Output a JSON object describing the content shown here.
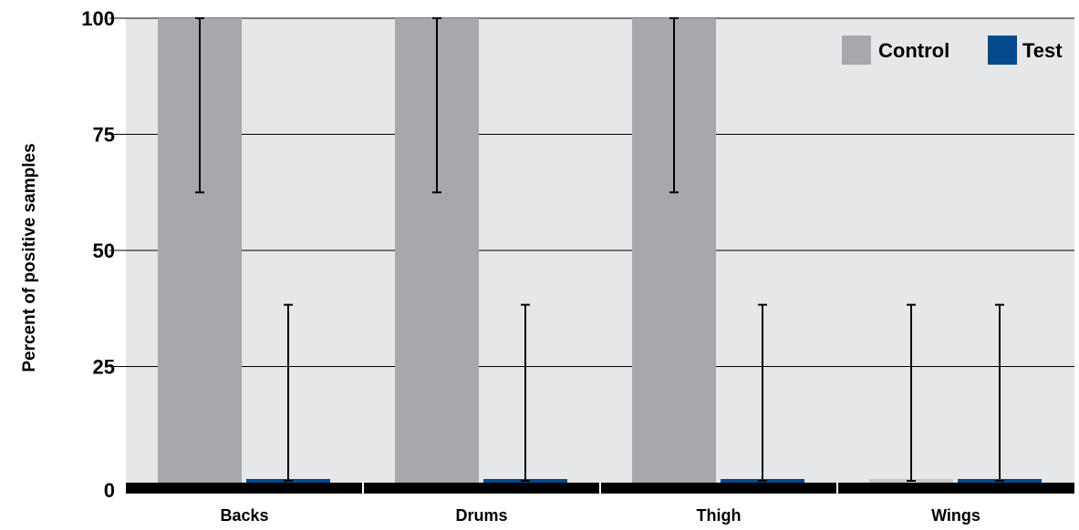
{
  "chart_data": {
    "type": "bar",
    "ylabel": "Percent of positive samples",
    "xlabel": "",
    "ylim": [
      0,
      100
    ],
    "yticks": [
      0,
      25,
      50,
      75,
      100
    ],
    "grid": true,
    "legend_position": "top-right",
    "categories": [
      "Backs",
      "Drums",
      "Thigh",
      "Wings"
    ],
    "series": [
      {
        "name": "Control",
        "color": "#a7a8ab",
        "values": [
          100,
          100,
          100,
          0
        ],
        "error_low": [
          62.5,
          62.5,
          62.5,
          0
        ],
        "error_high": [
          100,
          100,
          100,
          38.3
        ]
      },
      {
        "name": "Test",
        "color": "#034a8c",
        "values": [
          0,
          0,
          0,
          0
        ],
        "error_low": [
          0,
          0,
          0,
          0
        ],
        "error_high": [
          38.3,
          38.3,
          38.3,
          38.3
        ]
      }
    ]
  }
}
